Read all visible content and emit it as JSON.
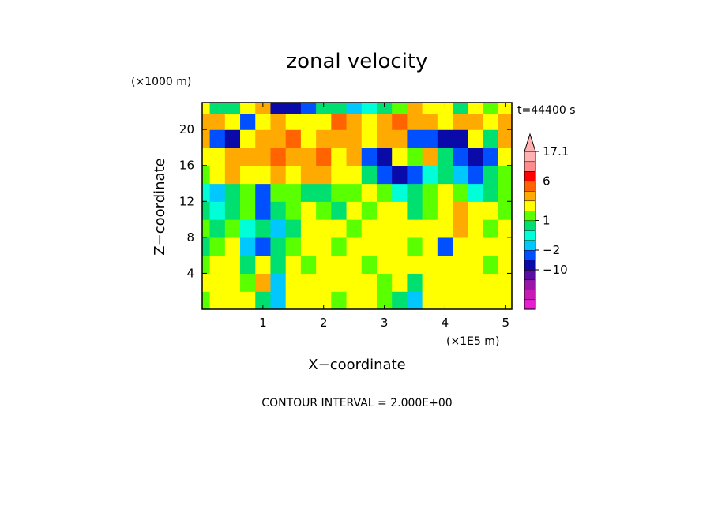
{
  "chart_data": {
    "type": "heatmap",
    "title": "zonal velocity",
    "xlabel": "X−coordinate",
    "ylabel": "Z−coordinate",
    "x_unit": "(×1E5 m)",
    "y_unit": "(×1000 m)",
    "time_label": "t=44400 s",
    "footer": "CONTOUR INTERVAL = 2.000E+00",
    "xlim": [
      0.0,
      5.1
    ],
    "ylim": [
      0.0,
      23.0
    ],
    "x_ticks": [
      "1",
      "2",
      "3",
      "4",
      "5"
    ],
    "x_tick_values": [
      1,
      2,
      3,
      4,
      5
    ],
    "y_ticks": [
      "4",
      "8",
      "12",
      "16",
      "20"
    ],
    "y_tick_values": [
      4,
      8,
      12,
      16,
      20
    ],
    "colorbar": {
      "labels": [
        "17.1",
        "6",
        "1",
        "−2",
        "−10"
      ],
      "label_values": [
        17.1,
        6,
        1,
        -2,
        -10
      ],
      "levels": [
        -22,
        -18,
        -14,
        -10,
        -6,
        -2,
        0,
        0.5,
        1,
        1.5,
        2,
        4,
        6,
        8,
        12,
        17.1
      ],
      "colors": [
        "#e81ed2",
        "#c81ab4",
        "#9a16a8",
        "#5a0ca4",
        "#0a0aa8",
        "#0050ff",
        "#00c8ff",
        "#00ffd8",
        "#00e070",
        "#5aff00",
        "#ffff00",
        "#ffaa00",
        "#ff6400",
        "#ff0000",
        "#ff8c8c",
        "#ffb0b0"
      ],
      "extend_max": true
    },
    "x": [
      0.0,
      0.25,
      0.5,
      0.75,
      1.0,
      1.25,
      1.5,
      1.75,
      2.0,
      2.25,
      2.5,
      2.75,
      3.0,
      3.25,
      3.5,
      3.75,
      4.0,
      4.25,
      4.5,
      4.75,
      5.0
    ],
    "z": [
      1,
      3,
      5,
      7,
      9,
      11,
      13,
      15,
      17,
      19,
      21,
      22.5
    ],
    "values": [
      [
        1.5,
        2,
        3,
        2,
        1,
        0,
        2,
        2,
        2,
        1.5,
        2,
        2,
        1.5,
        1,
        0,
        2,
        2,
        2,
        2,
        2,
        2
      ],
      [
        2,
        2,
        2,
        1.5,
        4,
        0,
        2,
        2,
        2,
        2,
        2,
        2,
        1.5,
        2,
        1,
        2,
        2,
        2,
        2,
        2,
        2
      ],
      [
        1.5,
        2,
        2,
        1,
        3,
        1,
        2,
        1.5,
        2,
        2,
        2,
        1.5,
        2,
        2,
        2,
        2,
        2,
        2,
        2,
        1.5,
        2
      ],
      [
        1,
        1.5,
        2,
        0,
        -2,
        1,
        1.5,
        2,
        2,
        1.5,
        2,
        2,
        2,
        2,
        1.5,
        2,
        -2,
        2,
        2,
        2,
        2
      ],
      [
        1.5,
        1,
        1.5,
        0.5,
        1,
        0,
        1,
        2,
        2,
        2,
        1.5,
        2,
        2,
        2,
        2,
        2,
        2,
        4,
        2,
        1.5,
        2
      ],
      [
        1,
        0.5,
        1,
        1.5,
        -2,
        1,
        1.5,
        2,
        1.5,
        1,
        2,
        1.5,
        2,
        2,
        1,
        1.5,
        2,
        4,
        2,
        2,
        1.5
      ],
      [
        0.5,
        0,
        1,
        1.5,
        -2,
        1.5,
        1.5,
        1,
        1,
        1.5,
        1.5,
        2,
        1.5,
        0.5,
        1,
        1.5,
        2,
        1.5,
        0.5,
        1,
        1.5
      ],
      [
        1.5,
        2,
        4,
        2,
        2,
        4,
        2,
        4,
        4,
        2,
        2,
        1,
        -2,
        -6,
        -2,
        0.5,
        1,
        0,
        -2,
        1,
        1.5
      ],
      [
        2,
        2,
        4,
        4,
        4,
        6,
        4,
        4,
        6,
        2,
        4,
        -2,
        -6,
        2,
        1.5,
        4,
        1,
        -2,
        -6,
        -2,
        2
      ],
      [
        4,
        -2,
        -6,
        2,
        4,
        4,
        6,
        2,
        4,
        4,
        4,
        2,
        4,
        4,
        -2,
        -2,
        -6,
        -6,
        2,
        1,
        4
      ],
      [
        4,
        4,
        2,
        -2,
        2,
        4,
        2,
        2,
        2,
        6,
        4,
        2,
        4,
        6,
        4,
        4,
        2,
        4,
        4,
        2,
        4
      ],
      [
        2,
        1,
        1,
        2,
        4,
        -6,
        -6,
        -2,
        1,
        1,
        0,
        0.5,
        1,
        1.5,
        4,
        2,
        2,
        1,
        2,
        1.5,
        2
      ]
    ]
  }
}
